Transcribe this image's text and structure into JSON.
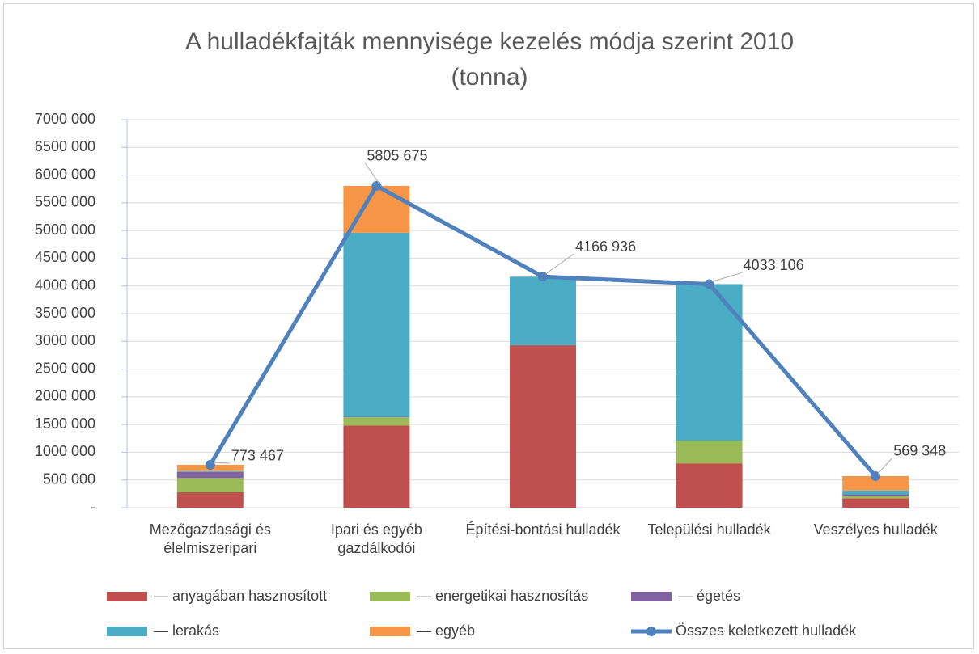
{
  "chart_data": {
    "type": "bar",
    "stacked": true,
    "title": "A hulladékfajták mennyisége kezelés módja szerint 2010 (tonna)",
    "categories": [
      "Mezőgazdasági és élelmiszeripari",
      "Ipari és egyéb gazdálkodói",
      "Építési-bontási hulladék",
      "Települési hulladék",
      "Veszélyes hulladék"
    ],
    "series": [
      {
        "name": "— anyagában hasznosított",
        "color": "#c0504d",
        "values": [
          280000,
          1480000,
          2930000,
          800000,
          170000
        ]
      },
      {
        "name": "— energetikai hasznosítás",
        "color": "#9bbb59",
        "values": [
          255000,
          150000,
          0,
          410000,
          40000
        ]
      },
      {
        "name": "— égetés",
        "color": "#8064a2",
        "values": [
          110000,
          10000,
          0,
          0,
          30000
        ]
      },
      {
        "name": "— lerakás",
        "color": "#4bacc6",
        "values": [
          15000,
          3320000,
          1236936,
          2823106,
          70000
        ]
      },
      {
        "name": "— egyéb",
        "color": "#f79646",
        "values": [
          113467,
          845675,
          0,
          0,
          259348
        ]
      },
      {
        "name": "Összes keletkezett hulladék",
        "type": "line",
        "color": "#4f81bd",
        "values": [
          773467,
          5805675,
          4166936,
          4033106,
          569348
        ],
        "value_labels": [
          "773 467",
          "5805 675",
          "4166 936",
          "4033 106",
          "569 348"
        ]
      }
    ],
    "ylim": [
      0,
      7000000
    ],
    "yticks": [
      {
        "value": 0,
        "label": "-"
      },
      {
        "value": 500000,
        "label": "500 000"
      },
      {
        "value": 1000000,
        "label": "1000 000"
      },
      {
        "value": 1500000,
        "label": "1500 000"
      },
      {
        "value": 2000000,
        "label": "2000 000"
      },
      {
        "value": 2500000,
        "label": "2500 000"
      },
      {
        "value": 3000000,
        "label": "3000 000"
      },
      {
        "value": 3500000,
        "label": "3500 000"
      },
      {
        "value": 4000000,
        "label": "4000 000"
      },
      {
        "value": 4500000,
        "label": "4500 000"
      },
      {
        "value": 5000000,
        "label": "5000 000"
      },
      {
        "value": 5500000,
        "label": "5500 000"
      },
      {
        "value": 6000000,
        "label": "6000 000"
      },
      {
        "value": 6500000,
        "label": "6500 000"
      },
      {
        "value": 7000000,
        "label": "7000 000"
      }
    ],
    "grid": true
  }
}
